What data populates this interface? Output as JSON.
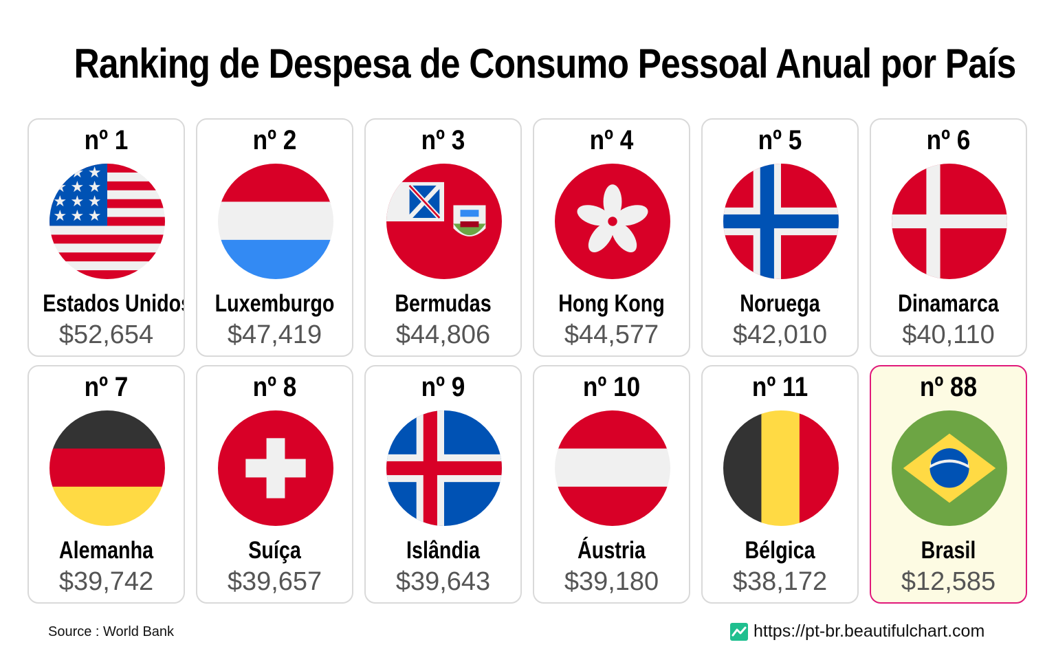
{
  "title": "Ranking de Despesa de Consumo Pessoal Anual por País",
  "source": "Source : World Bank",
  "website": "https://pt-br.beautifulchart.com",
  "colors": {
    "highlight_border": "#e0187a",
    "highlight_bg": "#fdfbe3",
    "value_text": "#555555"
  },
  "chart_data": {
    "type": "table",
    "title": "Ranking de Despesa de Consumo Pessoal Anual por País",
    "columns": [
      "rank",
      "country",
      "value"
    ],
    "rows": [
      {
        "rank": "nº 1",
        "country": "Estados Unidos",
        "value": "$52,654",
        "amount": 52654,
        "flag": "usa-flag-icon"
      },
      {
        "rank": "nº 2",
        "country": "Luxemburgo",
        "value": "$47,419",
        "amount": 47419,
        "flag": "luxembourg-flag-icon"
      },
      {
        "rank": "nº 3",
        "country": "Bermudas",
        "value": "$44,806",
        "amount": 44806,
        "flag": "bermuda-flag-icon"
      },
      {
        "rank": "nº 4",
        "country": "Hong Kong",
        "value": "$44,577",
        "amount": 44577,
        "flag": "hong-kong-flag-icon"
      },
      {
        "rank": "nº 5",
        "country": "Noruega",
        "value": "$42,010",
        "amount": 42010,
        "flag": "norway-flag-icon"
      },
      {
        "rank": "nº 6",
        "country": "Dinamarca",
        "value": "$40,110",
        "amount": 40110,
        "flag": "denmark-flag-icon"
      },
      {
        "rank": "nº 7",
        "country": "Alemanha",
        "value": "$39,742",
        "amount": 39742,
        "flag": "germany-flag-icon"
      },
      {
        "rank": "nº 8",
        "country": "Suíça",
        "value": "$39,657",
        "amount": 39657,
        "flag": "switzerland-flag-icon"
      },
      {
        "rank": "nº 9",
        "country": "Islândia",
        "value": "$39,643",
        "amount": 39643,
        "flag": "iceland-flag-icon"
      },
      {
        "rank": "nº 10",
        "country": "Áustria",
        "value": "$39,180",
        "amount": 39180,
        "flag": "austria-flag-icon"
      },
      {
        "rank": "nº 11",
        "country": "Bélgica",
        "value": "$38,172",
        "amount": 38172,
        "flag": "belgium-flag-icon"
      },
      {
        "rank": "nº 88",
        "country": "Brasil",
        "value": "$12,585",
        "amount": 12585,
        "flag": "brazil-flag-icon",
        "highlighted": true
      }
    ]
  }
}
